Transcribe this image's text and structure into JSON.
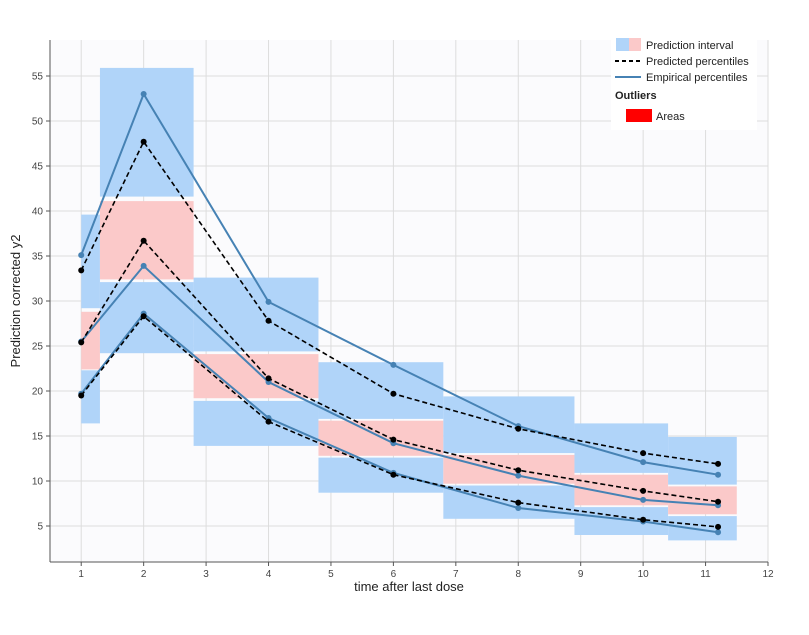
{
  "chart_data": {
    "type": "line",
    "xlabel": "time after last dose",
    "ylabel": "Prediction corrected y2",
    "xlim": [
      0.5,
      12
    ],
    "ylim": [
      1,
      59
    ],
    "xticks": [
      1,
      2,
      3,
      4,
      5,
      6,
      7,
      8,
      9,
      10,
      11,
      12
    ],
    "yticks": [
      5,
      10,
      15,
      20,
      25,
      30,
      35,
      40,
      45,
      50,
      55
    ],
    "grid": true,
    "legend_position": "top-right",
    "colors": {
      "pi_blue": "#b0d4f9",
      "pi_pink": "#fbc9c9",
      "empirical": "#4682b4",
      "predicted": "#000000",
      "outlier": "#ff0000",
      "plot_bg": "#fbfbfd",
      "grid": "#dddddd"
    },
    "bins": [
      {
        "x0": 1.0,
        "x1": 1.3,
        "upper": [
          29.2,
          39.6
        ],
        "median": [
          22.4,
          28.8
        ],
        "lower": [
          16.4,
          22.3
        ]
      },
      {
        "x0": 1.3,
        "x1": 2.8,
        "upper": [
          41.6,
          55.9
        ],
        "median": [
          32.4,
          41.1
        ],
        "lower": [
          24.2,
          32.1
        ]
      },
      {
        "x0": 2.8,
        "x1": 4.8,
        "upper": [
          24.4,
          32.6
        ],
        "median": [
          19.2,
          24.1
        ],
        "lower": [
          13.9,
          18.9
        ]
      },
      {
        "x0": 4.8,
        "x1": 6.8,
        "upper": [
          16.9,
          23.2
        ],
        "median": [
          12.8,
          16.7
        ],
        "lower": [
          8.7,
          12.6
        ]
      },
      {
        "x0": 6.8,
        "x1": 8.9,
        "upper": [
          13.1,
          19.4
        ],
        "median": [
          9.7,
          12.9
        ],
        "lower": [
          5.8,
          9.5
        ]
      },
      {
        "x0": 8.9,
        "x1": 10.4,
        "upper": [
          10.9,
          16.4
        ],
        "median": [
          7.3,
          10.7
        ],
        "lower": [
          4.0,
          7.1
        ]
      },
      {
        "x0": 10.4,
        "x1": 11.5,
        "upper": [
          9.6,
          14.9
        ],
        "median": [
          6.3,
          9.4
        ],
        "lower": [
          3.4,
          6.1
        ]
      }
    ],
    "x": [
      1.0,
      2.0,
      4.0,
      6.0,
      8.0,
      10.0,
      11.2
    ],
    "series": [
      {
        "name": "Empirical percentiles",
        "group": "empirical",
        "percentile": "upper",
        "values": [
          35.1,
          53.0,
          29.9,
          22.9,
          16.1,
          12.1,
          10.7
        ]
      },
      {
        "name": "Empirical percentiles",
        "group": "empirical",
        "percentile": "median",
        "values": [
          25.5,
          33.9,
          21.0,
          14.2,
          10.6,
          7.9,
          7.3
        ]
      },
      {
        "name": "Empirical percentiles",
        "group": "empirical",
        "percentile": "lower",
        "values": [
          19.7,
          28.6,
          17.0,
          10.9,
          7.0,
          5.5,
          4.3
        ]
      },
      {
        "name": "Predicted percentiles",
        "group": "predicted",
        "percentile": "upper",
        "values": [
          33.4,
          47.7,
          27.8,
          19.7,
          15.8,
          13.1,
          11.9
        ]
      },
      {
        "name": "Predicted percentiles",
        "group": "predicted",
        "percentile": "median",
        "values": [
          25.4,
          36.7,
          21.4,
          14.6,
          11.2,
          8.9,
          7.7
        ]
      },
      {
        "name": "Predicted percentiles",
        "group": "predicted",
        "percentile": "lower",
        "values": [
          19.5,
          28.3,
          16.6,
          10.7,
          7.6,
          5.7,
          4.9
        ]
      }
    ],
    "legend": {
      "items": [
        "Prediction interval",
        "Predicted percentiles",
        "Empirical percentiles"
      ],
      "outliers_title": "Outliers",
      "outliers_items": [
        "Areas"
      ]
    }
  }
}
